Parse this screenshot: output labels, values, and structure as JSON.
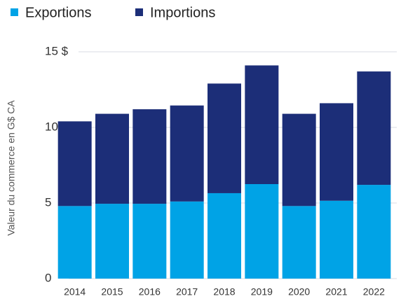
{
  "chart_data": {
    "type": "stacked_bar",
    "y_label": "Valeur du commerce en G$ CA",
    "categories": [
      "2014",
      "2015",
      "2016",
      "2017",
      "2018",
      "2019",
      "2020",
      "2021",
      "2022"
    ],
    "series": [
      {
        "name": "Exportions",
        "color": "#00a3e6",
        "values": [
          4.8,
          4.95,
          4.95,
          5.1,
          5.65,
          6.25,
          4.8,
          5.15,
          6.2
        ]
      },
      {
        "name": "Importions",
        "color": "#1c2e78",
        "values": [
          5.6,
          5.95,
          6.25,
          6.35,
          7.25,
          7.85,
          6.1,
          6.45,
          7.5
        ]
      }
    ],
    "ylim": [
      0,
      15
    ],
    "yticks": [
      0,
      5,
      10,
      {
        "value": 15,
        "label": "15 $"
      }
    ],
    "grid": true,
    "legend": "top-left"
  }
}
